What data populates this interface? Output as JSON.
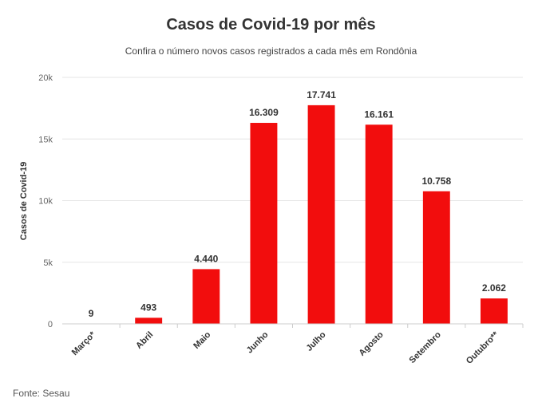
{
  "chart_data": {
    "type": "bar",
    "title": "Casos de Covid-19 por mês",
    "subtitle": "Confira o número novos casos registrados a cada mês em Rondônia",
    "ylabel": "Casos de Covid-19",
    "xlabel": "",
    "categories": [
      "Março*",
      "Abril",
      "Maio",
      "Junho",
      "Julho",
      "Agosto",
      "Setembro",
      "Outubro**"
    ],
    "values": [
      9,
      493,
      4440,
      16309,
      17741,
      16161,
      10758,
      2062
    ],
    "data_labels": [
      "9",
      "493",
      "4.440",
      "16.309",
      "17.741",
      "16.161",
      "10.758",
      "2.062"
    ],
    "ylim": [
      0,
      20000
    ],
    "yticks": [
      0,
      5000,
      10000,
      15000,
      20000
    ],
    "ytick_labels": [
      "0",
      "5k",
      "10k",
      "15k",
      "20k"
    ],
    "grid": true,
    "bar_color": "#f20d0d",
    "source": "Fonte: Sesau"
  }
}
